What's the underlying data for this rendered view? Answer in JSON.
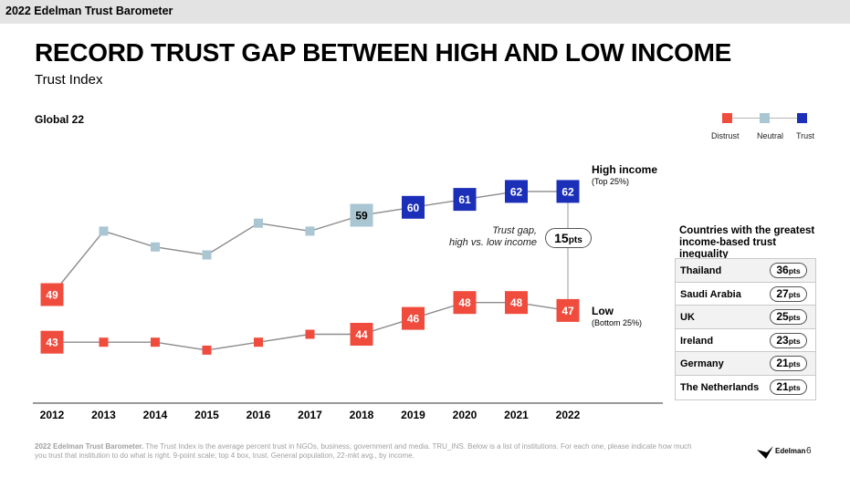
{
  "header": {
    "banner": "2022 Edelman Trust Barometer"
  },
  "title": "RECORD TRUST GAP BETWEEN HIGH AND LOW INCOME",
  "subtitle": "Trust Index",
  "scope_label": "Global 22",
  "legend": {
    "items": [
      {
        "label": "Distrust",
        "color": "#f04c3e"
      },
      {
        "label": "Neutral",
        "color": "#a9c6d2"
      },
      {
        "label": "Trust",
        "color": "#1c2fb8"
      }
    ]
  },
  "chart_data": {
    "type": "line",
    "x": [
      "2012",
      "2013",
      "2014",
      "2015",
      "2016",
      "2017",
      "2018",
      "2019",
      "2020",
      "2021",
      "2022"
    ],
    "ylim": [
      40,
      65
    ],
    "series": [
      {
        "name": "High income",
        "subtitle": "(Top 25%)",
        "values": [
          49,
          57,
          55,
          54,
          58,
          57,
          59,
          60,
          61,
          62,
          62
        ],
        "labels": [
          "49",
          null,
          null,
          null,
          null,
          null,
          "59",
          "60",
          "61",
          "62",
          "62"
        ],
        "categories": [
          "distrust",
          "neutral",
          "neutral",
          "neutral",
          "neutral",
          "neutral",
          "neutral",
          "trust",
          "trust",
          "trust",
          "trust"
        ]
      },
      {
        "name": "Low",
        "subtitle": "(Bottom 25%)",
        "values": [
          43,
          43,
          43,
          42,
          43,
          44,
          44,
          46,
          48,
          48,
          47
        ],
        "labels": [
          "43",
          null,
          null,
          null,
          null,
          null,
          "44",
          "46",
          "48",
          "48",
          "47"
        ],
        "categories": [
          "distrust",
          "distrust",
          "distrust",
          "distrust",
          "distrust",
          "distrust",
          "distrust",
          "distrust",
          "distrust",
          "distrust",
          "distrust"
        ]
      }
    ],
    "annotation": {
      "label": "Trust gap,\nhigh vs. low income",
      "value": "15",
      "unit": "pts",
      "year": "2022"
    }
  },
  "countries": {
    "title": "Countries with the greatest income-based trust inequality",
    "unit": "pts",
    "rows": [
      {
        "name": "Thailand",
        "value": "36"
      },
      {
        "name": "Saudi Arabia",
        "value": "27"
      },
      {
        "name": "UK",
        "value": "25"
      },
      {
        "name": "Ireland",
        "value": "23"
      },
      {
        "name": "Germany",
        "value": "21"
      },
      {
        "name": "The Netherlands",
        "value": "21"
      }
    ]
  },
  "footer": {
    "source_bold": "2022 Edelman Trust Barometer.",
    "source_text": " The Trust Index is the average percent trust in NGOs, business, government and media. TRU_INS. Below is a list of institutions. For each one, please indicate how much you trust that institution to do what is right. 9-point scale; top 4 box, trust. General population, 22-mkt avg., by income.",
    "brand": "Edelman",
    "page": "6"
  }
}
